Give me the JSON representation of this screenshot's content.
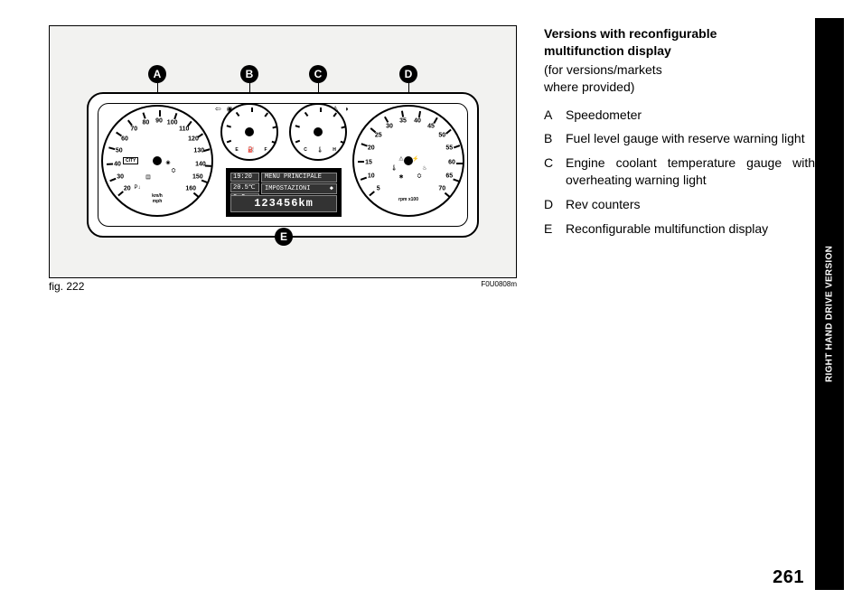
{
  "page_number": "261",
  "side_tab": "RIGHT HAND DRIVE VERSION",
  "figure": {
    "caption": "fig. 222",
    "code": "F0U0808m"
  },
  "title_line1": "Versions with reconfigurable",
  "title_line2": "multifunction display",
  "subtitle_line1": "(for versions/markets",
  "subtitle_line2": "where provided)",
  "legend": [
    {
      "key": "A",
      "text": "Speedometer"
    },
    {
      "key": "B",
      "text": "Fuel level gauge with reserve warning light"
    },
    {
      "key": "C",
      "text": "Engine coolant temperature gauge with overheating warning light"
    },
    {
      "key": "D",
      "text": "Rev counters"
    },
    {
      "key": "E",
      "text": "Reconfigurable multifunction display"
    }
  ],
  "callouts": [
    "A",
    "B",
    "C",
    "D",
    "E"
  ],
  "speedo": {
    "values": [
      "20",
      "30",
      "40",
      "50",
      "60",
      "70",
      "80",
      "90",
      "100",
      "110",
      "120",
      "130",
      "140",
      "150",
      "160"
    ],
    "units_top": "km/h",
    "units_bot": "mph",
    "badge": "CITY"
  },
  "tach": {
    "values": [
      "5",
      "10",
      "15",
      "20",
      "25",
      "30",
      "35",
      "40",
      "45",
      "50",
      "55",
      "60",
      "65",
      "70"
    ],
    "units": "rpm x100"
  },
  "fuel": {
    "left": "E",
    "right": "F"
  },
  "temp": {
    "left": "C",
    "right": "H"
  },
  "indicators": {
    "left": [
      "⇦",
      "◉",
      "✱"
    ],
    "right": [
      "⇨",
      "■",
      "⚠",
      "◑"
    ]
  },
  "lcd": {
    "time": "19:20",
    "temp": "20.5℃",
    "gear": "2 ⛭",
    "menu1": "MENU PRINCIPALE",
    "menu2": "IMPOSTAZIONI",
    "arrows": "◆",
    "odo": "123456km"
  },
  "colors": {
    "page_bg": "#ffffff",
    "figure_bg": "#f2f2f0",
    "ink": "#000000",
    "lcd_bg": "#000000",
    "lcd_cell": "#333333",
    "lcd_border": "#888888",
    "lcd_text": "#ffffff"
  }
}
